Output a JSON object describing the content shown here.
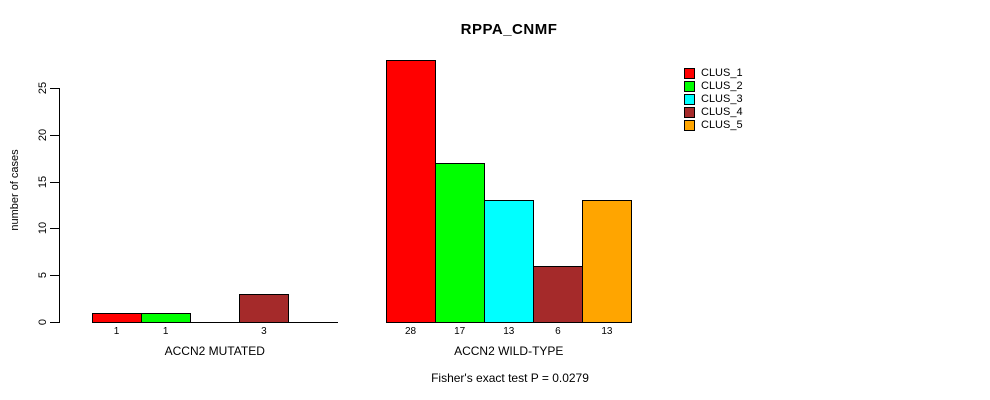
{
  "legend": {
    "items": [
      {
        "label": "CLUS_1",
        "color": "#FF0000"
      },
      {
        "label": "CLUS_2",
        "color": "#00FF00"
      },
      {
        "label": "CLUS_3",
        "color": "#00FFFF"
      },
      {
        "label": "CLUS_4",
        "color": "#A52A2A"
      },
      {
        "label": "CLUS_5",
        "color": "#FFA500"
      }
    ]
  },
  "chart_data": {
    "type": "bar",
    "title": "RPPA_CNMF",
    "xlabel": "",
    "ylabel": "number of cases",
    "ylim": [
      0,
      28
    ],
    "yticks": [
      0,
      5,
      10,
      15,
      20,
      25
    ],
    "grid": false,
    "legend_position": "top-right",
    "categories": [
      "CLUS_1",
      "CLUS_2",
      "CLUS_3",
      "CLUS_4",
      "CLUS_5"
    ],
    "colors": [
      "#FF0000",
      "#00FF00",
      "#00FFFF",
      "#A52A2A",
      "#FFA500"
    ],
    "groups": [
      {
        "label": "ACCN2 MUTATED",
        "values": [
          1,
          1,
          0,
          3,
          0
        ],
        "bar_labels": [
          "1",
          "1",
          "",
          "3",
          ""
        ]
      },
      {
        "label": "ACCN2 WILD-TYPE",
        "values": [
          28,
          17,
          13,
          6,
          13
        ],
        "bar_labels": [
          "28",
          "17",
          "13",
          "6",
          "13"
        ]
      }
    ],
    "annotation": "Fisher's exact test P = 0.0279"
  }
}
